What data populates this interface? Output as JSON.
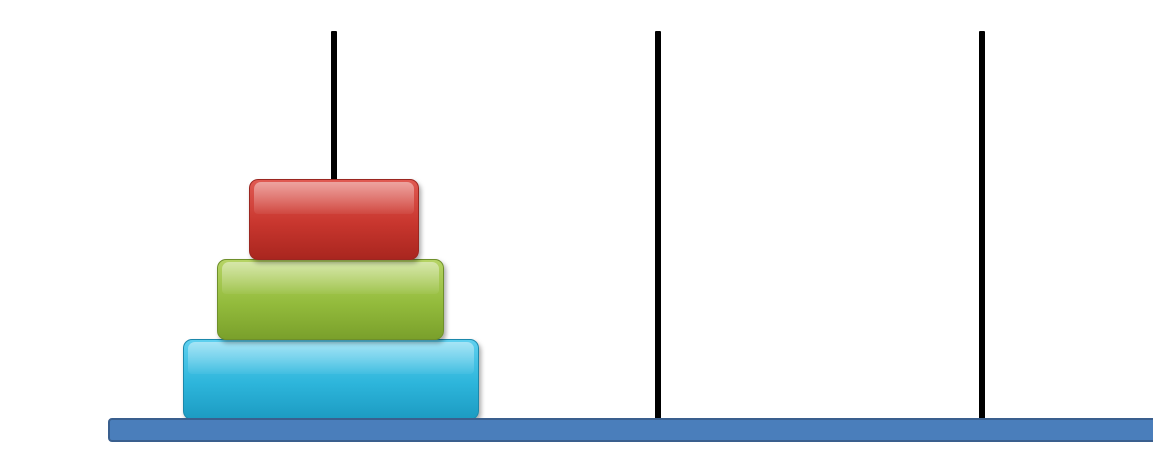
{
  "game": {
    "pegs": [
      {
        "name": "left",
        "disks": [
          "large",
          "medium",
          "small"
        ]
      },
      {
        "name": "middle",
        "disks": []
      },
      {
        "name": "right",
        "disks": []
      }
    ],
    "disks": [
      {
        "size": "small",
        "color": "#d63f37"
      },
      {
        "size": "medium",
        "color": "#9cc347"
      },
      {
        "size": "large",
        "color": "#35bde1"
      }
    ],
    "base_color": "#4a7ebb",
    "peg_color": "#000000"
  }
}
